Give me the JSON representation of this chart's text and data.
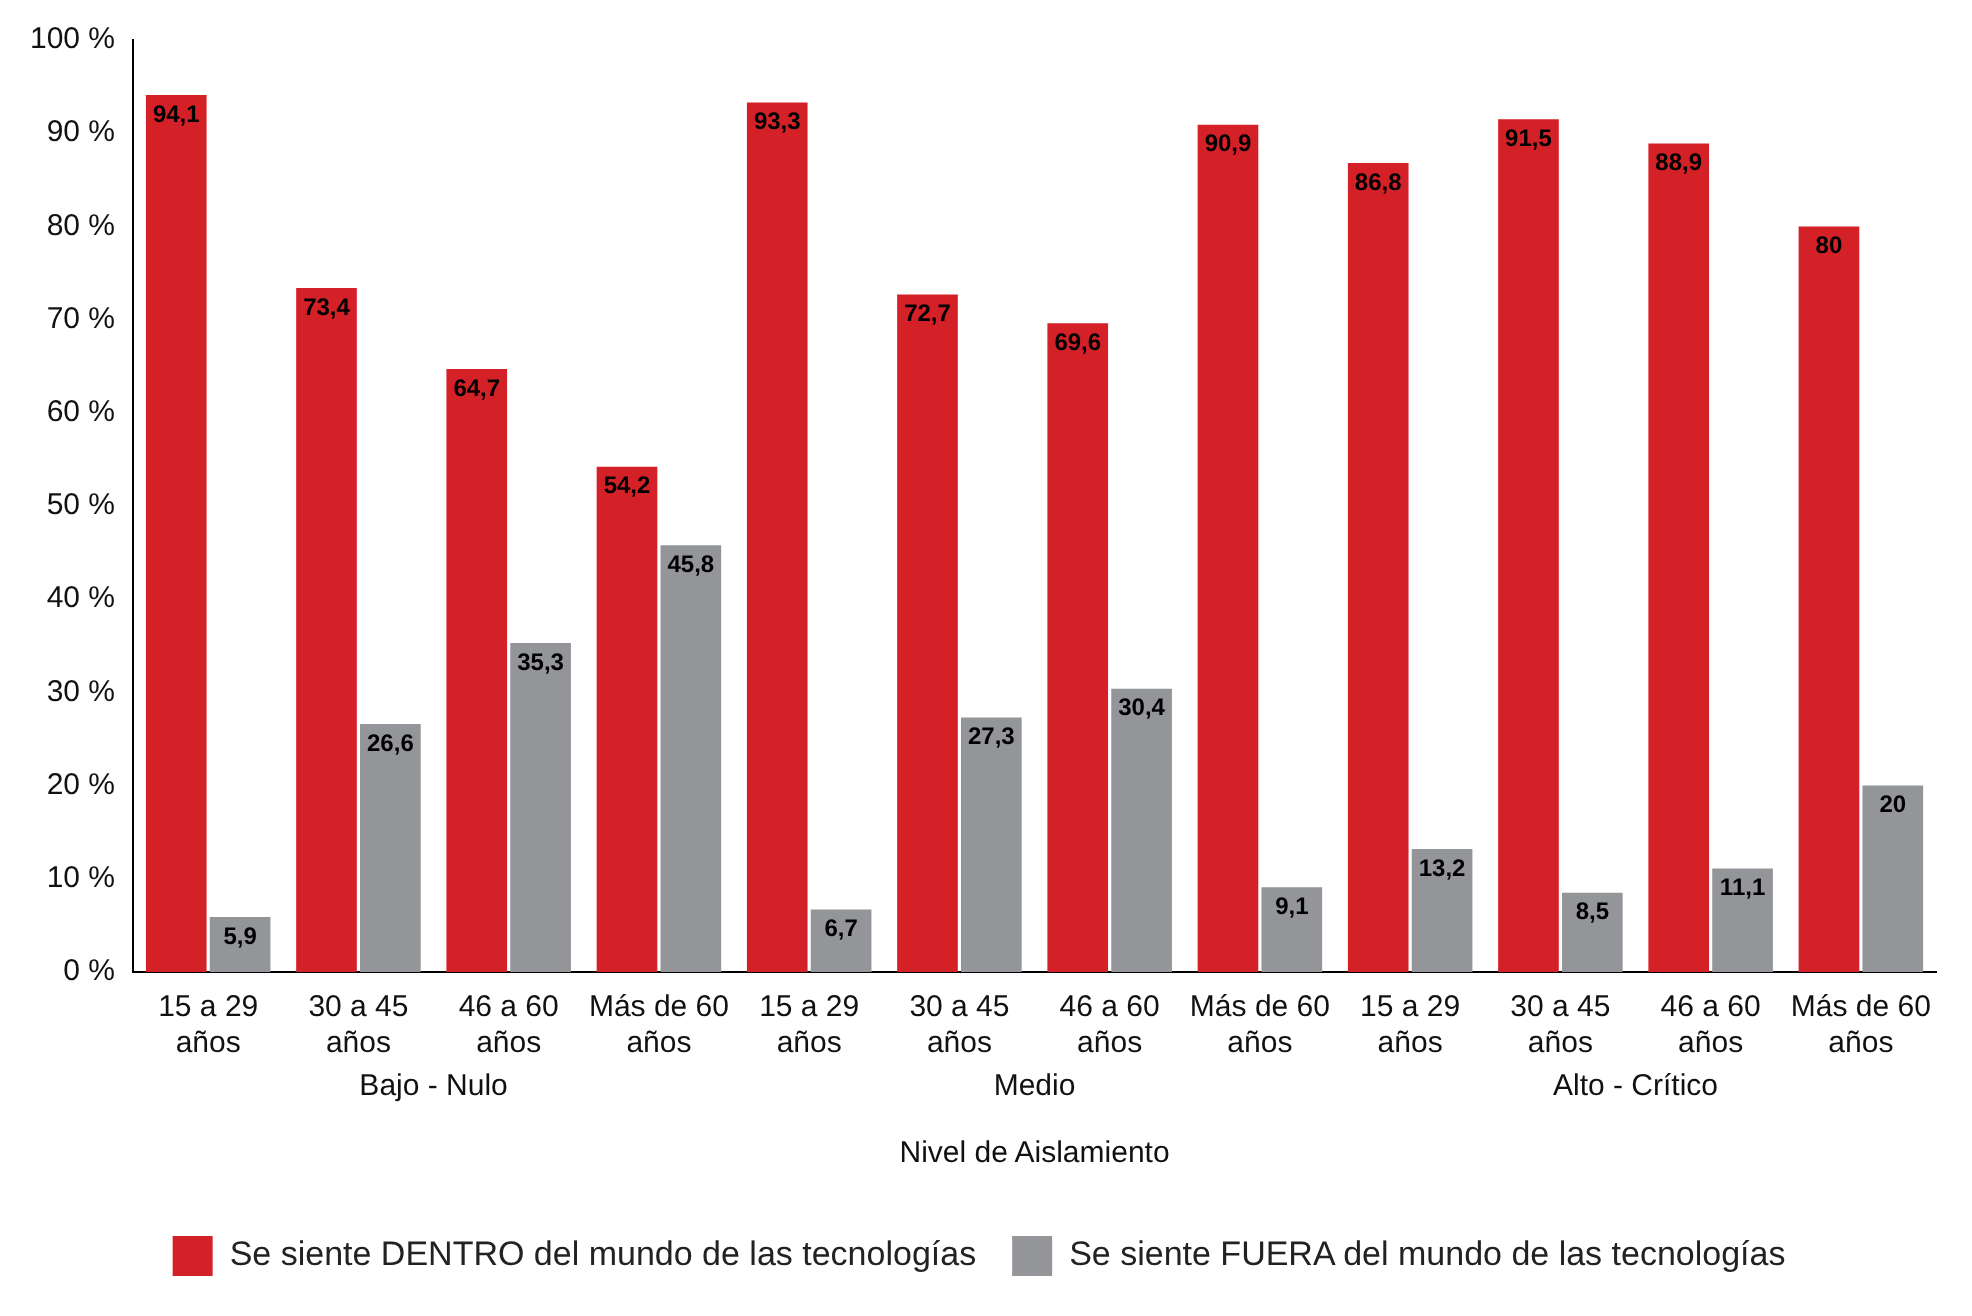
{
  "chart_data": {
    "type": "bar",
    "xlabel": "Nivel de Aislamiento",
    "categories": [
      "15 a 29 años",
      "30 a 45 años",
      "46 a 60 años",
      "Más de 60 años",
      "15 a 29 años",
      "30 a 45 años",
      "46 a 60 años",
      "Más de 60 años",
      "15 a 29 años",
      "30 a 45 años",
      "46 a 60 años",
      "Más de 60 años"
    ],
    "annotations": [
      "Bajo - Nulo",
      "Medio",
      "Alto - Crítico"
    ],
    "series": [
      {
        "name": "Se siente DENTRO del mundo de las tecnologías",
        "color": "#d42027",
        "values": [
          94.1,
          73.4,
          64.7,
          54.2,
          93.3,
          72.7,
          69.6,
          90.9,
          86.8,
          91.5,
          88.9,
          80
        ],
        "value_labels": [
          "94,1",
          "73,4",
          "64,7",
          "54,2",
          "93,3",
          "72,7",
          "69,6",
          "90,9",
          "86,8",
          "91,5",
          "88,9",
          "80"
        ]
      },
      {
        "name": "Se siente FUERA del mundo de las tecnologías",
        "color": "#939598",
        "values": [
          5.9,
          26.6,
          35.3,
          45.8,
          6.7,
          27.3,
          30.4,
          9.1,
          13.2,
          8.5,
          11.1,
          20
        ],
        "value_labels": [
          "5,9",
          "26,6",
          "35,3",
          "45,8",
          "6,7",
          "27,3",
          "30,4",
          "9,1",
          "13,2",
          "8,5",
          "11,1",
          "20"
        ]
      }
    ],
    "ylim": [
      0,
      100
    ],
    "yticks": [
      {
        "value": 0,
        "label": "0 %"
      },
      {
        "value": 10,
        "label": "10 %"
      },
      {
        "value": 20,
        "label": "20 %"
      },
      {
        "value": 30,
        "label": "30 %"
      },
      {
        "value": 40,
        "label": "40 %"
      },
      {
        "value": 50,
        "label": "50 %"
      },
      {
        "value": 60,
        "label": "60 %"
      },
      {
        "value": 70,
        "label": "70 %"
      },
      {
        "value": 80,
        "label": "80 %"
      },
      {
        "value": 90,
        "label": "90 %"
      },
      {
        "value": 100,
        "label": "100 %"
      }
    ],
    "grid": false,
    "legend": "bottom"
  }
}
